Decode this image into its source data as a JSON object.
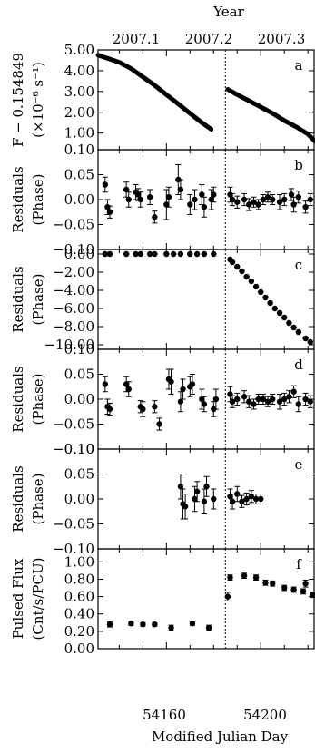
{
  "figure": {
    "top_axis_title": "Year",
    "top_tick_labels": [
      "2007.1",
      "2007.2",
      "2007.3"
    ],
    "x_axis_title": "Modified Julian Day",
    "x_tick_labels": [
      "54160",
      "54200"
    ],
    "glitch_mjd": 54185
  },
  "chart_data": [
    {
      "panel": "a",
      "type": "line",
      "ylabel": "F − 0.154849",
      "ylabel2": "(×10⁻⁶ s⁻¹)",
      "ylim": [
        0.2,
        5.0
      ],
      "yticks": [
        1.0,
        2.0,
        3.0,
        4.0,
        5.0
      ],
      "ytick_labels": [
        "1.00",
        "2.00",
        "3.00",
        "4.00",
        "5.00"
      ],
      "xlim": [
        54131,
        54223
      ],
      "series": [
        {
          "x": [
            54131,
            54135,
            54140,
            54145,
            54150,
            54155,
            54160,
            54165,
            54170,
            54175,
            54179
          ],
          "y": [
            4.75,
            4.6,
            4.4,
            4.1,
            3.7,
            3.3,
            2.85,
            2.4,
            1.95,
            1.5,
            1.18
          ]
        },
        {
          "x": [
            54186,
            54190,
            54195,
            54200,
            54205,
            54210,
            54215,
            54220,
            54223
          ],
          "y": [
            3.1,
            2.85,
            2.55,
            2.25,
            1.95,
            1.6,
            1.3,
            0.95,
            0.6
          ]
        }
      ]
    },
    {
      "panel": "b",
      "type": "scatter",
      "ylabel": "Residuals",
      "ylabel2": "(Phase)",
      "ylim": [
        -0.1,
        0.1
      ],
      "yticks": [
        -0.1,
        -0.05,
        0.0,
        0.05,
        0.1
      ],
      "ytick_labels": [
        "−0.10",
        "−0.05",
        "0.00",
        "0.05",
        "0.10"
      ],
      "xlim": [
        54131,
        54223
      ],
      "x": [
        54134,
        54135,
        54136,
        54143,
        54144,
        54147,
        54148,
        54149,
        54153,
        54155,
        54160,
        54161,
        54165,
        54166,
        54170,
        54172,
        54175,
        54176,
        54179,
        54180,
        54187,
        54188,
        54190,
        54193,
        54195,
        54197,
        54199,
        54201,
        54203,
        54205,
        54208,
        54210,
        54213,
        54214,
        54216,
        54219,
        54221
      ],
      "y": [
        0.03,
        -0.015,
        -0.025,
        0.02,
        0.0,
        0.015,
        0.01,
        0.0,
        0.005,
        -0.035,
        -0.01,
        0.005,
        0.04,
        0.02,
        -0.01,
        0.0,
        0.01,
        -0.015,
        0.0,
        0.01,
        0.01,
        0.0,
        -0.005,
        0.0,
        -0.01,
        -0.005,
        -0.01,
        0.0,
        0.005,
        0.0,
        -0.005,
        0.0,
        0.01,
        -0.01,
        0.005,
        -0.015,
        0.0
      ],
      "yerr": [
        0.015,
        0.015,
        0.012,
        0.015,
        0.015,
        0.015,
        0.012,
        0.015,
        0.015,
        0.012,
        0.03,
        0.02,
        0.03,
        0.02,
        0.02,
        0.02,
        0.02,
        0.02,
        0.02,
        0.015,
        0.015,
        0.012,
        0.012,
        0.012,
        0.012,
        0.01,
        0.01,
        0.01,
        0.01,
        0.01,
        0.015,
        0.012,
        0.012,
        0.015,
        0.012,
        0.012,
        0.012
      ]
    },
    {
      "panel": "c",
      "type": "scatter",
      "ylabel": "Residuals",
      "ylabel2": "(Phase)",
      "ylim": [
        -10.5,
        0.5
      ],
      "yticks": [
        -10,
        -8,
        -6,
        -4,
        -2,
        0
      ],
      "ytick_labels": [
        "−10.00",
        "−8.00",
        "−6.00",
        "−4.00",
        "−2.00",
        "0.00"
      ],
      "xlim": [
        54131,
        54223
      ],
      "x": [
        54134,
        54136,
        54143,
        54147,
        54149,
        54153,
        54155,
        54160,
        54163,
        54166,
        54170,
        54173,
        54176,
        54180,
        54187,
        54188,
        54190,
        54192,
        54194,
        54196,
        54198,
        54200,
        54202,
        54204,
        54206,
        54208,
        54210,
        54212,
        54214,
        54216,
        54219,
        54221
      ],
      "y": [
        0,
        0,
        0,
        0,
        0,
        0,
        0,
        0,
        0,
        0,
        0,
        0,
        0,
        0,
        -0.6,
        -0.9,
        -1.4,
        -1.9,
        -2.5,
        -3.0,
        -3.6,
        -4.2,
        -4.8,
        -5.4,
        -6.0,
        -6.5,
        -7.0,
        -7.6,
        -8.1,
        -8.6,
        -9.3,
        -9.7
      ]
    },
    {
      "panel": "d",
      "type": "scatter",
      "ylabel": "Residuals",
      "ylabel2": "(Phase)",
      "ylim": [
        -0.1,
        0.1
      ],
      "yticks": [
        -0.1,
        -0.05,
        0.0,
        0.05,
        0.1
      ],
      "ytick_labels": [
        "−0.10",
        "−0.05",
        "0.00",
        "0.05",
        "0.10"
      ],
      "xlim": [
        54131,
        54223
      ],
      "x": [
        54134,
        54135,
        54136,
        54143,
        54144,
        54149,
        54150,
        54155,
        54157,
        54161,
        54162,
        54166,
        54167,
        54170,
        54171,
        54175,
        54176,
        54180,
        54181,
        54187,
        54188,
        54190,
        54193,
        54195,
        54197,
        54199,
        54201,
        54203,
        54205,
        54208,
        54210,
        54212,
        54214,
        54216,
        54219,
        54221
      ],
      "y": [
        0.03,
        -0.015,
        -0.02,
        0.03,
        0.02,
        -0.015,
        -0.02,
        -0.015,
        -0.05,
        0.04,
        0.035,
        -0.005,
        0.02,
        0.025,
        0.03,
        0.0,
        -0.01,
        -0.02,
        0.0,
        0.01,
        -0.005,
        0.0,
        0.005,
        -0.005,
        -0.01,
        0.0,
        0.0,
        -0.005,
        0.0,
        -0.005,
        0.0,
        0.005,
        0.015,
        -0.01,
        0.0,
        -0.005
      ],
      "yerr": [
        0.015,
        0.015,
        0.012,
        0.015,
        0.015,
        0.012,
        0.015,
        0.012,
        0.012,
        0.02,
        0.025,
        0.02,
        0.02,
        0.02,
        0.02,
        0.02,
        0.015,
        0.015,
        0.02,
        0.015,
        0.012,
        0.012,
        0.012,
        0.012,
        0.01,
        0.01,
        0.01,
        0.01,
        0.01,
        0.015,
        0.012,
        0.012,
        0.012,
        0.015,
        0.012,
        0.012
      ]
    },
    {
      "panel": "e",
      "type": "scatter",
      "ylabel": "Residuals",
      "ylabel2": "(Phase)",
      "ylim": [
        -0.1,
        0.1
      ],
      "yticks": [
        -0.1,
        -0.05,
        0.0,
        0.05,
        0.1
      ],
      "ytick_labels": [
        "−0.10",
        "−0.05",
        "0.00",
        "0.05",
        "0.10"
      ],
      "xlim": [
        54131,
        54223
      ],
      "x": [
        54166,
        54167,
        54168,
        54172,
        54173,
        54176,
        54177,
        54180,
        54187,
        54188,
        54190,
        54192,
        54194,
        54196,
        54198,
        54200
      ],
      "y": [
        0.025,
        -0.01,
        -0.015,
        0.0,
        0.015,
        -0.005,
        0.025,
        0.0,
        0.005,
        -0.005,
        0.01,
        -0.005,
        0.0,
        0.005,
        0.0,
        0.0
      ],
      "yerr": [
        0.025,
        0.03,
        0.025,
        0.025,
        0.02,
        0.025,
        0.02,
        0.02,
        0.015,
        0.015,
        0.015,
        0.012,
        0.012,
        0.012,
        0.01,
        0.01
      ]
    },
    {
      "panel": "f",
      "type": "scatter",
      "ylabel": "Pulsed Flux",
      "ylabel2": "(Cnt/s/PCU)",
      "ylim": [
        0.0,
        1.15
      ],
      "yticks": [
        0.0,
        0.2,
        0.4,
        0.6,
        0.8,
        1.0
      ],
      "ytick_labels": [
        "0.00",
        "0.20",
        "0.40",
        "0.60",
        "0.80",
        "1.00"
      ],
      "xlim": [
        54131,
        54223
      ],
      "x": [
        54136,
        54145,
        54150,
        54155,
        54162,
        54171,
        54178,
        54186,
        54187,
        54193,
        54198,
        54202,
        54205,
        54210,
        54214,
        54218,
        54219,
        54222
      ],
      "y": [
        0.28,
        0.29,
        0.28,
        0.28,
        0.24,
        0.29,
        0.24,
        0.6,
        0.82,
        0.84,
        0.82,
        0.76,
        0.75,
        0.7,
        0.68,
        0.66,
        0.75,
        0.62
      ],
      "yerr": [
        0.03,
        0.02,
        0.02,
        0.02,
        0.03,
        0.02,
        0.03,
        0.05,
        0.03,
        0.03,
        0.03,
        0.03,
        0.03,
        0.03,
        0.03,
        0.03,
        0.04,
        0.03
      ]
    }
  ]
}
